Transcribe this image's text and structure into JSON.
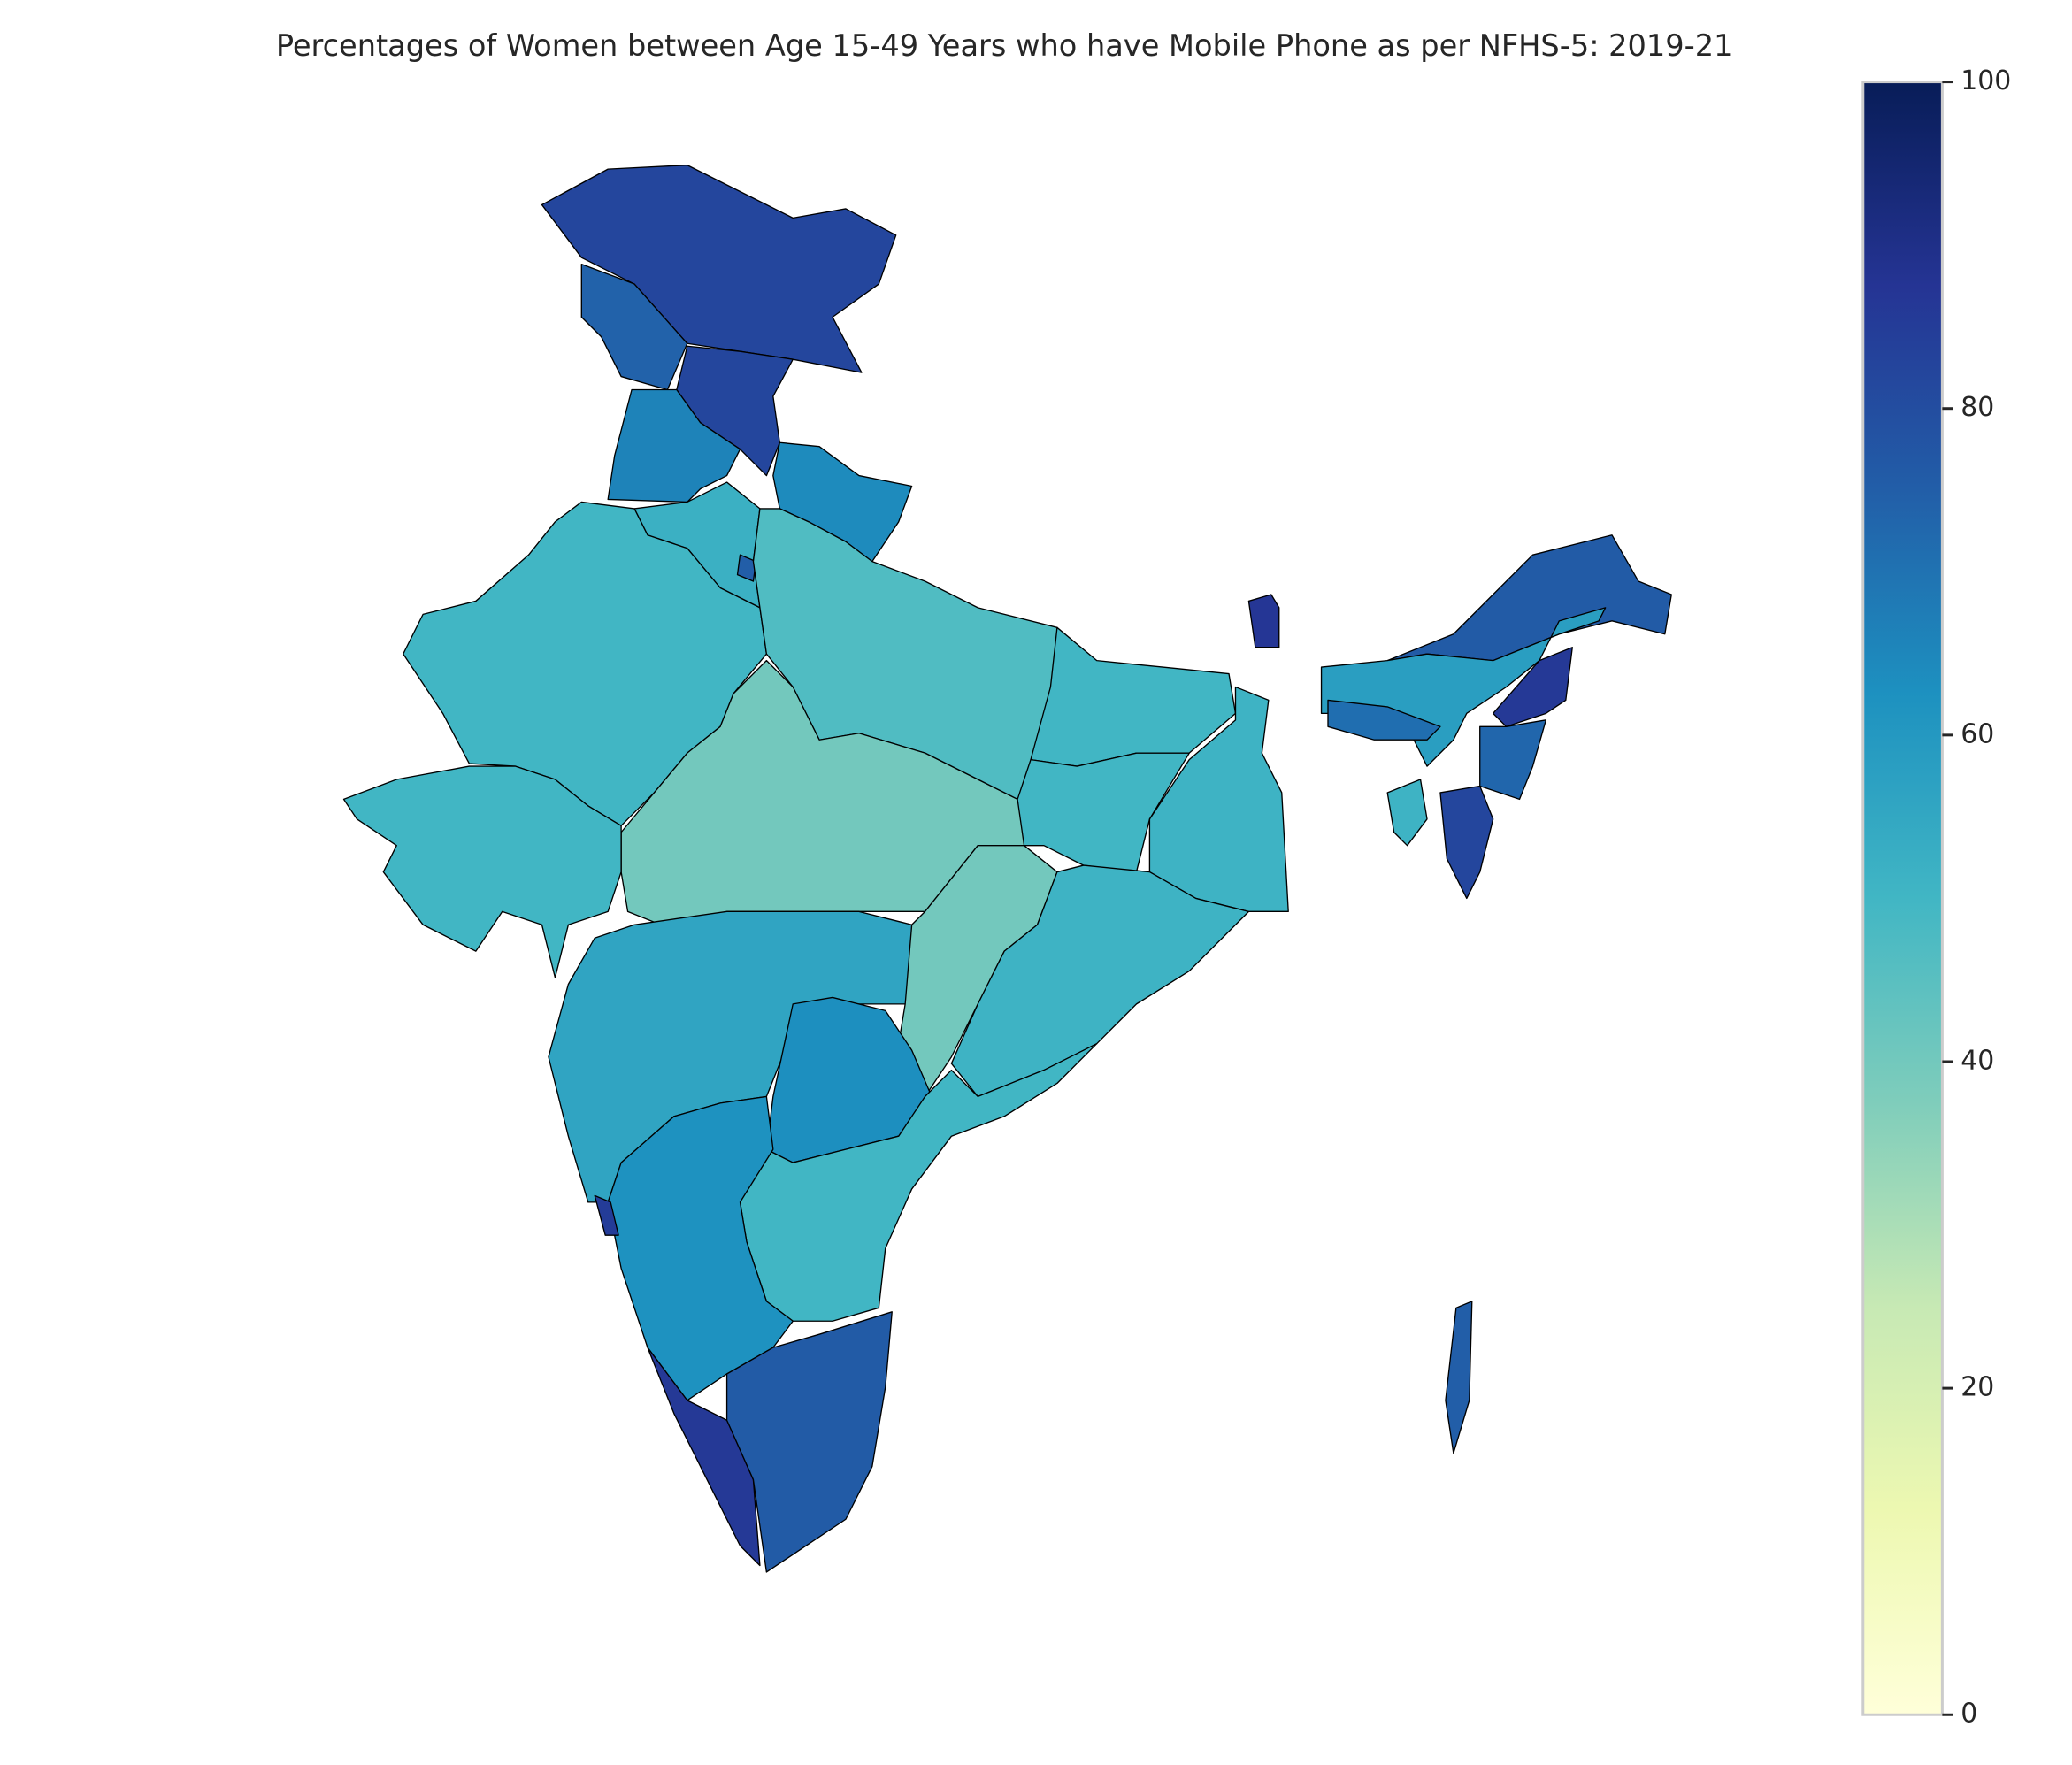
{
  "chart_data": {
    "type": "choropleth",
    "title": "Percentages of Women between Age 15-49 Years who have Mobile Phone as per NFHS-5: 2019-21",
    "values": [
      82,
      74,
      82,
      66,
      64,
      52,
      75,
      50,
      47,
      40,
      50,
      56,
      40,
      50,
      50,
      51,
      51,
      63,
      50,
      62,
      85,
      86,
      76,
      87,
      76,
      58,
      71,
      86,
      73,
      82,
      51,
      75
    ],
    "colormap": "YlGnBu",
    "colorlim": [
      0,
      100
    ],
    "colorticks": [
      0,
      20,
      40,
      60,
      80,
      100
    ]
  }
}
